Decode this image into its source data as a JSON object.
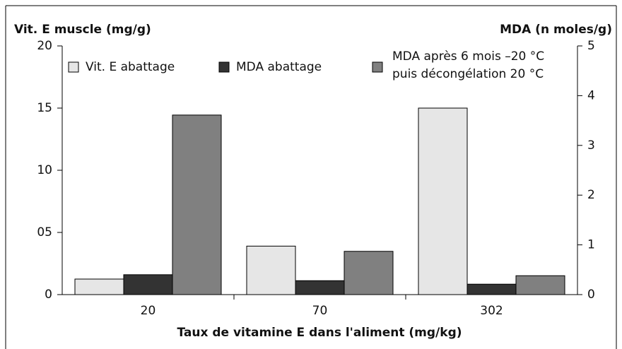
{
  "chart_data": {
    "type": "bar",
    "y_label": "Vit. E muscle (mg/g)",
    "y2_label": "MDA (n moles/g)",
    "x_label": "Taux de vitamine E dans l'aliment (mg/kg)",
    "categories": [
      "20",
      "70",
      "302"
    ],
    "series": [
      {
        "name": "Vit. E abattage",
        "color": "#e6e6e6",
        "values": [
          1.25,
          3.9,
          15.0
        ]
      },
      {
        "name": "MDA abattage",
        "color": "#333333",
        "axis": "y2",
        "values": [
          0.4,
          0.28,
          0.21
        ]
      },
      {
        "name": "MDA après 6 mois –20 °C puis décongélation 20 °C",
        "color": "#808080",
        "axis": "y2",
        "values": [
          3.61,
          0.87,
          0.38
        ]
      }
    ],
    "ylim": [
      0,
      20
    ],
    "yticks": [
      0,
      {
        "value": 5,
        "label": "05"
      },
      10,
      15,
      20
    ],
    "y2lim": [
      0,
      5
    ],
    "y2ticks": [
      0,
      1,
      2,
      3,
      4,
      5
    ],
    "grid": false
  }
}
